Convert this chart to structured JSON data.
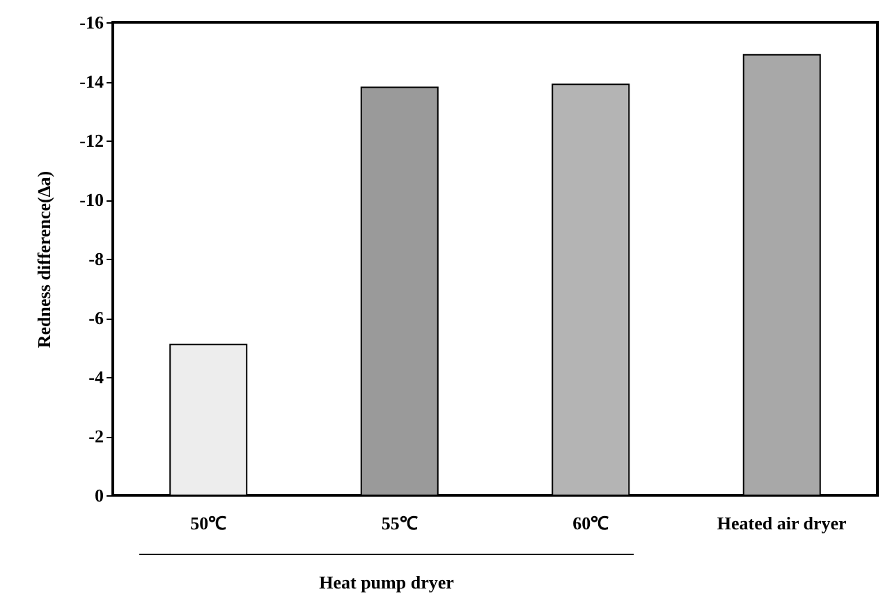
{
  "chart_data": {
    "type": "bar",
    "ylabel": "Redness difference(∆a)",
    "categories": [
      "50℃",
      "55℃",
      "60℃",
      "Heated air dryer"
    ],
    "values": [
      -5.1,
      -13.8,
      -13.9,
      -14.9
    ],
    "colors": [
      "#ededed",
      "#9a9a9a",
      "#b4b4b4",
      "#a8a8a8"
    ],
    "ylim": [
      0,
      -16
    ],
    "yticks": [
      0,
      -2,
      -4,
      -6,
      -8,
      -10,
      -12,
      -14,
      -16
    ],
    "annotations": [
      "Heat pump dryer"
    ]
  }
}
